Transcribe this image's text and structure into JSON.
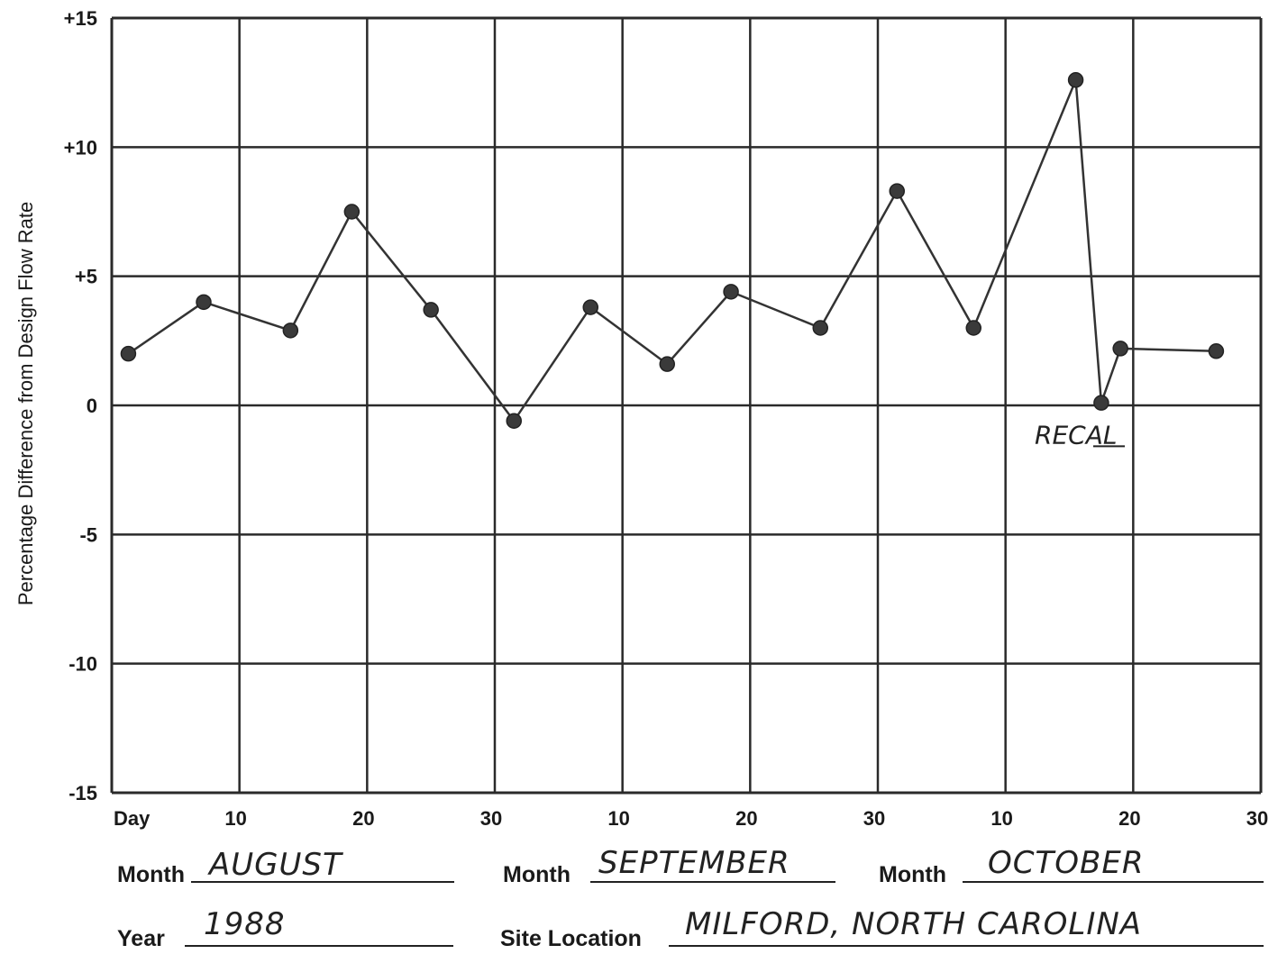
{
  "chart_data": {
    "type": "line",
    "ylabel": "Percentage Difference from Design Flow Rate",
    "ylim": [
      -15,
      15
    ],
    "y_ticks": [
      "+15",
      "+10",
      "+5",
      "0",
      "-5",
      "-10",
      "-15"
    ],
    "y_tick_values": [
      15,
      10,
      5,
      0,
      -5,
      -10,
      -15
    ],
    "x_ticks": [
      "Day",
      "10",
      "20",
      "30",
      "10",
      "20",
      "30",
      "10",
      "20",
      "30"
    ],
    "x_tick_days": [
      0,
      10,
      20,
      30,
      40,
      50,
      60,
      70,
      80,
      90
    ],
    "xlim": [
      0,
      90
    ],
    "grid": true,
    "series": [
      {
        "x": [
          1.3,
          7.2,
          14,
          18.8,
          25,
          31.5,
          37.5,
          43.5,
          48.5,
          55.5,
          61.5,
          67.5,
          75.5,
          77.5,
          79,
          86.5
        ],
        "values": [
          2.0,
          4.0,
          2.9,
          7.5,
          3.7,
          -0.6,
          3.8,
          1.6,
          4.4,
          3.0,
          8.3,
          3.0,
          12.6,
          0.1,
          2.2,
          2.1
        ]
      }
    ],
    "annotations": [
      {
        "text": "RECAL",
        "x": 78.5,
        "y": -1.2
      }
    ]
  },
  "form": {
    "month1_label": "Month",
    "month1_value": "AUGUST",
    "month2_label": "Month",
    "month2_value": "SEPTEMBER",
    "month3_label": "Month",
    "month3_value": "OCTOBER",
    "year_label": "Year",
    "year_value": "1988",
    "site_label": "Site Location",
    "site_value": "MILFORD, NORTH CAROLINA"
  },
  "colors": {
    "grid": "#2a2a2a",
    "line": "#333333",
    "marker": "#3a3a3a"
  }
}
